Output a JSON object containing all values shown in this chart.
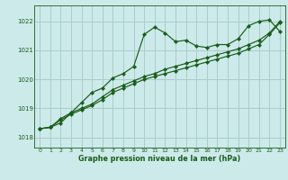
{
  "title": "Graphe pression niveau de la mer (hPa)",
  "bg_color": "#cceaea",
  "grid_color": "#aacccc",
  "line_color": "#1a5c1a",
  "xlim": [
    -0.5,
    23.5
  ],
  "ylim": [
    1017.65,
    1022.55
  ],
  "yticks": [
    1018,
    1019,
    1020,
    1021,
    1022
  ],
  "xticks": [
    0,
    1,
    2,
    3,
    4,
    5,
    6,
    7,
    8,
    9,
    10,
    11,
    12,
    13,
    14,
    15,
    16,
    17,
    18,
    19,
    20,
    21,
    22,
    23
  ],
  "line1": [
    1018.3,
    1018.35,
    1018.5,
    1018.85,
    1019.2,
    1019.55,
    1019.7,
    1020.05,
    1020.2,
    1020.45,
    1021.55,
    1021.8,
    1021.6,
    1021.3,
    1021.35,
    1021.15,
    1021.1,
    1021.2,
    1021.2,
    1021.4,
    1021.85,
    1022.0,
    1022.05,
    1021.65
  ],
  "line2": [
    1018.3,
    1018.35,
    1018.6,
    1018.8,
    1018.95,
    1019.1,
    1019.3,
    1019.55,
    1019.7,
    1019.85,
    1020.0,
    1020.1,
    1020.2,
    1020.3,
    1020.4,
    1020.5,
    1020.6,
    1020.7,
    1020.8,
    1020.9,
    1021.05,
    1021.2,
    1021.55,
    1021.95
  ],
  "line3": [
    1018.3,
    1018.35,
    1018.65,
    1018.85,
    1019.0,
    1019.15,
    1019.4,
    1019.65,
    1019.8,
    1019.95,
    1020.1,
    1020.2,
    1020.35,
    1020.45,
    1020.55,
    1020.65,
    1020.75,
    1020.85,
    1020.95,
    1021.05,
    1021.2,
    1021.35,
    1021.6,
    1022.0
  ]
}
